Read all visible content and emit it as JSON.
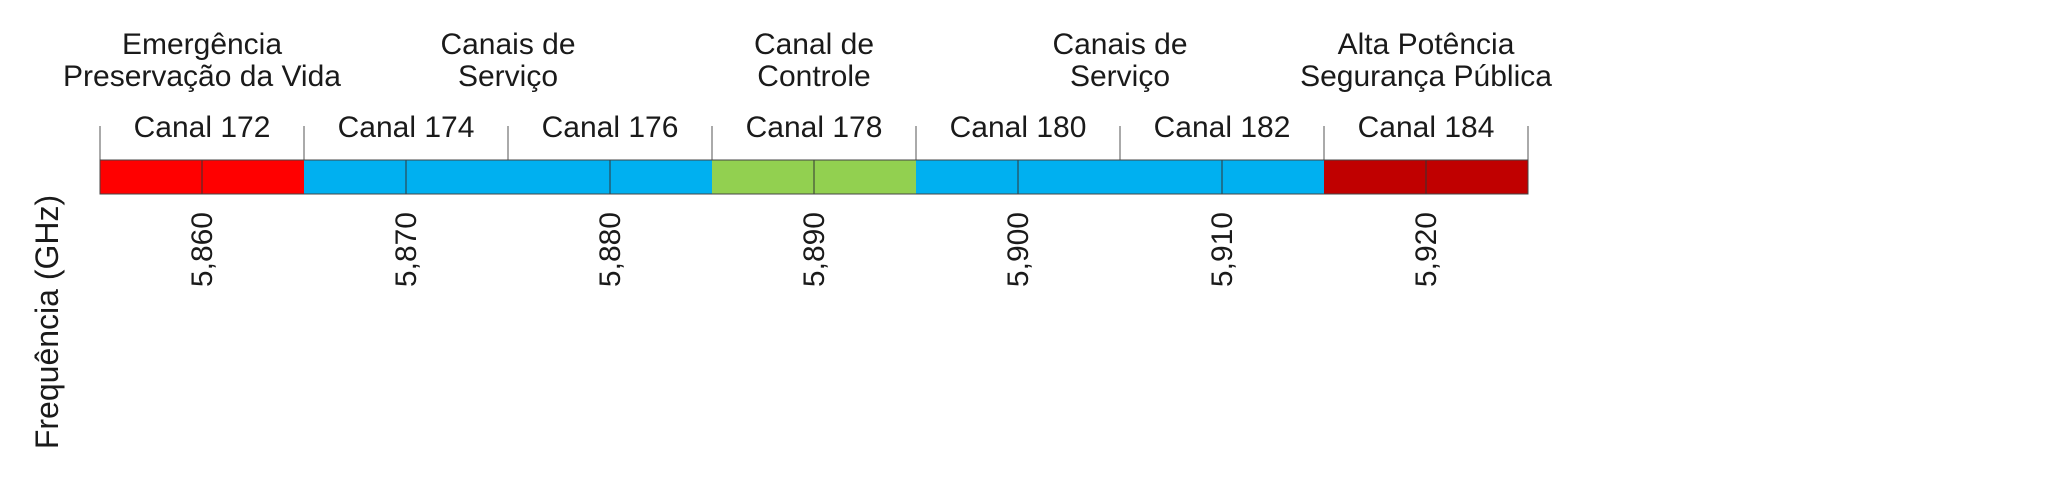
{
  "axis_label": "Frequência (GHz)",
  "groups": [
    {
      "lines": [
        "Emergência",
        "Preservação da Vida"
      ],
      "first_channel": 0,
      "last_channel": 0
    },
    {
      "lines": [
        "Canais de",
        "Serviço"
      ],
      "first_channel": 1,
      "last_channel": 2
    },
    {
      "lines": [
        "Canal de",
        "Controle"
      ],
      "first_channel": 3,
      "last_channel": 3
    },
    {
      "lines": [
        "Canais de",
        "Serviço"
      ],
      "first_channel": 4,
      "last_channel": 5
    },
    {
      "lines": [
        "Alta Potência",
        "Segurança Pública"
      ],
      "first_channel": 6,
      "last_channel": 6
    }
  ],
  "channels": [
    {
      "label": "Canal 172",
      "frequency": "5,860",
      "color": "#ff0000"
    },
    {
      "label": "Canal 174",
      "frequency": "5,870",
      "color": "#00b0f0"
    },
    {
      "label": "Canal 176",
      "frequency": "5,880",
      "color": "#00b0f0"
    },
    {
      "label": "Canal 178",
      "frequency": "5,890",
      "color": "#92d050"
    },
    {
      "label": "Canal 180",
      "frequency": "5,900",
      "color": "#00b0f0"
    },
    {
      "label": "Canal 182",
      "frequency": "5,910",
      "color": "#00b0f0"
    },
    {
      "label": "Canal 184",
      "frequency": "5,920",
      "color": "#c00000"
    }
  ]
}
